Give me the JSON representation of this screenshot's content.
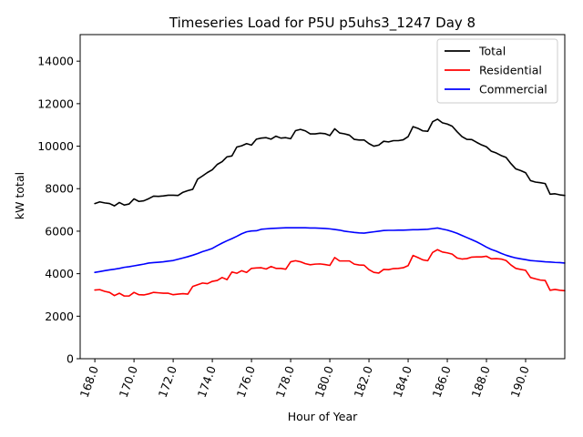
{
  "chart_data": {
    "type": "line",
    "title": "Timeseries Load for P5U p5uhs3_1247  Day 8",
    "xlabel": "Hour of Year",
    "ylabel": "kW total",
    "xlim": [
      167.25,
      192.0
    ],
    "ylim": [
      0,
      15250
    ],
    "xticks": [
      168,
      170,
      172,
      174,
      176,
      178,
      180,
      182,
      184,
      186,
      188,
      190
    ],
    "xtick_labels": [
      "168.0",
      "170.0",
      "172.0",
      "174.0",
      "176.0",
      "178.0",
      "180.0",
      "182.0",
      "184.0",
      "186.0",
      "188.0",
      "190.0"
    ],
    "yticks": [
      0,
      2000,
      4000,
      6000,
      8000,
      10000,
      12000,
      14000
    ],
    "ytick_labels": [
      "0",
      "2000",
      "4000",
      "6000",
      "8000",
      "10000",
      "12000",
      "14000"
    ],
    "legend_position": "top-right",
    "x_start": 168.0,
    "x_step": 0.25,
    "series": [
      {
        "name": "Total",
        "color": "#000000",
        "values": [
          7300,
          7380,
          7330,
          7300,
          7190,
          7350,
          7230,
          7280,
          7520,
          7400,
          7430,
          7530,
          7650,
          7640,
          7660,
          7690,
          7690,
          7680,
          7830,
          7910,
          7970,
          8450,
          8600,
          8760,
          8890,
          9140,
          9270,
          9500,
          9540,
          9960,
          10020,
          10120,
          10050,
          10330,
          10380,
          10400,
          10330,
          10470,
          10380,
          10400,
          10350,
          10730,
          10790,
          10720,
          10580,
          10580,
          10610,
          10590,
          10500,
          10820,
          10620,
          10580,
          10520,
          10320,
          10290,
          10290,
          10120,
          10000,
          10050,
          10230,
          10200,
          10260,
          10260,
          10300,
          10450,
          10920,
          10840,
          10720,
          10700,
          11150,
          11270,
          11100,
          11040,
          10940,
          10680,
          10450,
          10320,
          10310,
          10180,
          10060,
          9970,
          9760,
          9680,
          9560,
          9470,
          9180,
          8930,
          8850,
          8750,
          8380,
          8310,
          8280,
          8240,
          7740,
          7760,
          7710,
          7680
        ]
      },
      {
        "name": "Residential",
        "color": "#ff0000",
        "values": [
          3230,
          3250,
          3170,
          3120,
          2970,
          3080,
          2950,
          2950,
          3120,
          3010,
          3000,
          3050,
          3120,
          3100,
          3080,
          3080,
          3010,
          3040,
          3060,
          3040,
          3400,
          3480,
          3560,
          3530,
          3640,
          3680,
          3820,
          3720,
          4080,
          4020,
          4140,
          4060,
          4250,
          4270,
          4280,
          4220,
          4340,
          4250,
          4250,
          4210,
          4560,
          4610,
          4560,
          4470,
          4420,
          4450,
          4460,
          4430,
          4390,
          4760,
          4600,
          4600,
          4600,
          4450,
          4410,
          4400,
          4190,
          4060,
          4030,
          4200,
          4190,
          4240,
          4250,
          4280,
          4380,
          4860,
          4760,
          4650,
          4610,
          5000,
          5130,
          5020,
          4980,
          4920,
          4740,
          4690,
          4710,
          4780,
          4790,
          4790,
          4820,
          4700,
          4710,
          4690,
          4620,
          4410,
          4250,
          4200,
          4160,
          3820,
          3760,
          3700,
          3680,
          3220,
          3260,
          3220,
          3200
        ]
      },
      {
        "name": "Commercial",
        "color": "#0000ff",
        "values": [
          4060,
          4100,
          4140,
          4180,
          4210,
          4250,
          4300,
          4330,
          4370,
          4410,
          4450,
          4500,
          4520,
          4540,
          4560,
          4590,
          4620,
          4680,
          4740,
          4800,
          4870,
          4950,
          5040,
          5110,
          5190,
          5320,
          5440,
          5550,
          5650,
          5760,
          5880,
          5970,
          6010,
          6020,
          6090,
          6110,
          6130,
          6140,
          6150,
          6160,
          6160,
          6160,
          6160,
          6160,
          6150,
          6150,
          6140,
          6130,
          6110,
          6080,
          6050,
          6000,
          5970,
          5940,
          5920,
          5910,
          5940,
          5970,
          6000,
          6030,
          6040,
          6040,
          6050,
          6050,
          6060,
          6070,
          6070,
          6080,
          6090,
          6120,
          6150,
          6100,
          6050,
          5980,
          5900,
          5800,
          5700,
          5600,
          5500,
          5380,
          5250,
          5140,
          5060,
          4960,
          4870,
          4800,
          4740,
          4700,
          4660,
          4620,
          4600,
          4580,
          4560,
          4550,
          4530,
          4520,
          4500
        ]
      }
    ]
  }
}
